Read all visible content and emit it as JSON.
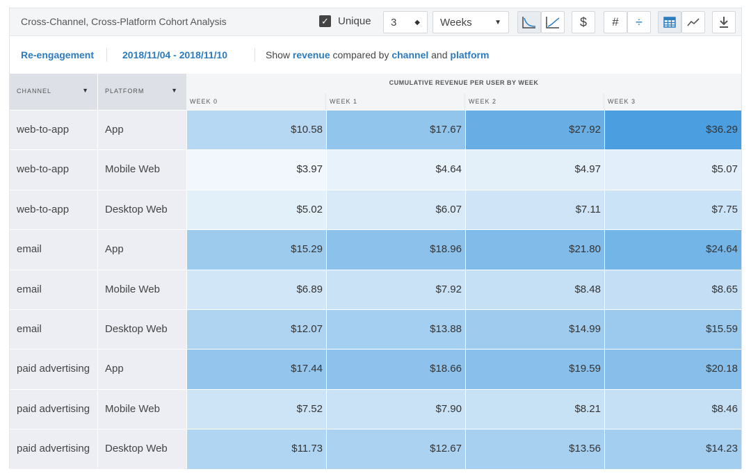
{
  "toolbar": {
    "title": "Cross-Channel, Cross-Platform Cohort Analysis",
    "unique_label": "Unique",
    "unique_checked": true,
    "count_value": "3",
    "period_value": "Weeks",
    "dollar_label": "$",
    "hash_label": "#",
    "divide_label": "÷"
  },
  "subheader": {
    "event": "Re-engagement",
    "date_range": "2018/11/04 - 2018/11/10",
    "show_prefix": "Show",
    "metric": "revenue",
    "compared_by": "compared by",
    "dim1": "channel",
    "and_word": "and",
    "dim2": "platform"
  },
  "table": {
    "channel_header": "CHANNEL",
    "platform_header": "PLATFORM",
    "metric_header": "CUMULATIVE REVENUE PER USER BY WEEK",
    "week_headers": [
      "WEEK 0",
      "WEEK 1",
      "WEEK 2",
      "WEEK 3"
    ],
    "rows": [
      {
        "channel": "web-to-app",
        "platform": "App",
        "values": [
          "$10.58",
          "$17.67",
          "$27.92",
          "$36.29"
        ]
      },
      {
        "channel": "web-to-app",
        "platform": "Mobile Web",
        "values": [
          "$3.97",
          "$4.64",
          "$4.97",
          "$5.07"
        ]
      },
      {
        "channel": "web-to-app",
        "platform": "Desktop Web",
        "values": [
          "$5.02",
          "$6.07",
          "$7.11",
          "$7.75"
        ]
      },
      {
        "channel": "email",
        "platform": "App",
        "values": [
          "$15.29",
          "$18.96",
          "$21.80",
          "$24.64"
        ]
      },
      {
        "channel": "email",
        "platform": "Mobile Web",
        "values": [
          "$6.89",
          "$7.92",
          "$8.48",
          "$8.65"
        ]
      },
      {
        "channel": "email",
        "platform": "Desktop Web",
        "values": [
          "$12.07",
          "$13.88",
          "$14.99",
          "$15.59"
        ]
      },
      {
        "channel": "paid advertising",
        "platform": "App",
        "values": [
          "$17.44",
          "$18.66",
          "$19.59",
          "$20.18"
        ]
      },
      {
        "channel": "paid advertising",
        "platform": "Mobile Web",
        "values": [
          "$7.52",
          "$7.90",
          "$8.21",
          "$8.46"
        ]
      },
      {
        "channel": "paid advertising",
        "platform": "Desktop Web",
        "values": [
          "$11.73",
          "$12.67",
          "$13.56",
          "$14.23"
        ]
      }
    ]
  },
  "colors": {
    "accent": "#2b7bbf",
    "heat_low": "#ffffff",
    "heat_high": "#4a9ee0"
  }
}
